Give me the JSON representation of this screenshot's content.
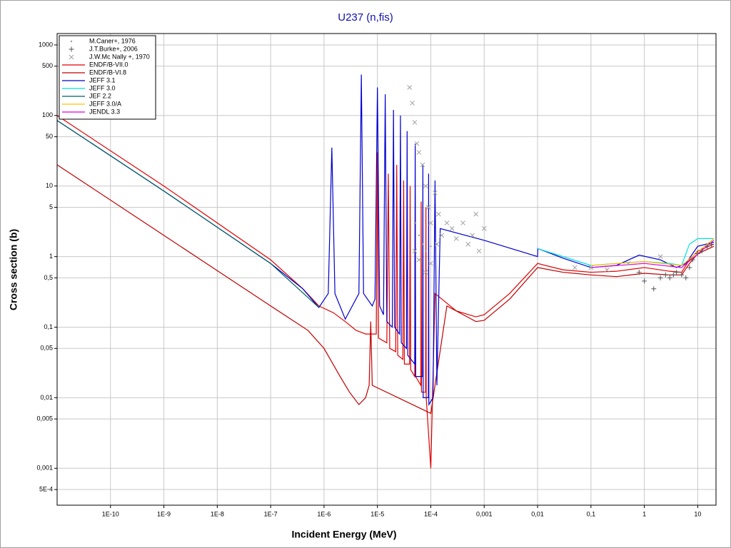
{
  "chart_data": {
    "type": "line",
    "title": "U237 (n,fis)",
    "xlabel": "Incident Energy (MeV)",
    "ylabel": "Cross section (b)",
    "xscale": "log",
    "yscale": "log",
    "grid": true,
    "legend": "upper left",
    "xlim": [
      1e-11,
      22
    ],
    "ylim": [
      0.0003,
      1450
    ],
    "xticks": [
      {
        "value": 1e-10,
        "label": "1E-10"
      },
      {
        "value": 1e-09,
        "label": "1E-9"
      },
      {
        "value": 1e-08,
        "label": "1E-8"
      },
      {
        "value": 1e-07,
        "label": "1E-7"
      },
      {
        "value": 1e-06,
        "label": "1E-6"
      },
      {
        "value": 1e-05,
        "label": "1E-5"
      },
      {
        "value": 0.0001,
        "label": "1E-4"
      },
      {
        "value": 0.001,
        "label": "0,001"
      },
      {
        "value": 0.01,
        "label": "0,01"
      },
      {
        "value": 0.1,
        "label": "0,1"
      },
      1,
      10
    ],
    "yticks": [
      1000,
      500,
      100,
      50,
      10,
      5,
      1,
      {
        "value": 0.5,
        "label": "0,5"
      },
      {
        "value": 0.1,
        "label": "0,1"
      },
      {
        "value": 0.05,
        "label": "0,05"
      },
      {
        "value": 0.01,
        "label": "0,01"
      },
      {
        "value": 0.005,
        "label": "0,005"
      },
      {
        "value": 0.001,
        "label": "0,001"
      },
      {
        "value": 0.0005,
        "label": "5E-4"
      }
    ],
    "series": [
      {
        "name": "M.Caner+, 1976",
        "color": "#999999",
        "mode": "markers",
        "marker": "dot",
        "x": [
          5e-05,
          6e-05,
          7e-05,
          8e-05,
          0.0001
        ],
        "values": [
          3,
          2,
          1.5,
          1.2,
          1.4
        ]
      },
      {
        "name": "J.T.Burke+, 2006",
        "color": "#555555",
        "mode": "markers",
        "marker": "plus",
        "x": [
          0.8,
          1,
          1.5,
          2,
          2.5,
          3,
          3.5,
          4,
          5,
          6,
          7,
          8,
          10,
          12,
          15,
          18
        ],
        "values": [
          0.6,
          0.45,
          0.35,
          0.5,
          0.55,
          0.5,
          0.55,
          0.6,
          0.55,
          0.5,
          0.7,
          0.9,
          1.1,
          1.2,
          1.4,
          1.5
        ]
      },
      {
        "name": "J.W.Mc Nally +, 1970",
        "color": "#a0a0a0",
        "mode": "markers",
        "marker": "cross",
        "x": [
          4e-05,
          4.5e-05,
          5e-05,
          5.5e-05,
          6e-05,
          7e-05,
          8e-05,
          9e-05,
          0.0001,
          0.00012,
          0.00014,
          0.00016,
          0.0002,
          0.00025,
          0.0003,
          0.0004,
          0.0005,
          0.0006,
          0.0007,
          0.0008,
          0.001,
          5e-05,
          6e-05,
          8e-05,
          0.0001,
          0.00013,
          0.05,
          0.1,
          0.2,
          0.5,
          2
        ],
        "values": [
          250,
          150,
          80,
          40,
          30,
          20,
          10,
          5,
          3,
          8,
          4,
          2,
          3,
          2.5,
          1.8,
          3,
          1.5,
          2,
          4,
          1.2,
          2.5,
          1.2,
          0.9,
          0.6,
          0.8,
          1.5,
          0.7,
          0.7,
          0.65,
          0.8,
          1.0
        ]
      },
      {
        "name": "ENDF/B-VII.0",
        "color": "#e00000",
        "mode": "lines",
        "x": [
          1e-11,
          1e-09,
          1e-07,
          4e-07,
          8e-07,
          1.5e-06,
          2.5e-06,
          4e-06,
          6e-06,
          8e-06,
          9.5e-06,
          1e-05,
          1.05e-05,
          1.5e-05,
          1.6e-05,
          1.7e-05,
          2.2e-05,
          2.3e-05,
          2.4e-05,
          3e-05,
          3.1e-05,
          3.2e-05,
          4e-05,
          4.1e-05,
          4.2e-05,
          5e-05,
          5.1e-05,
          5.2e-05,
          6.5e-05,
          6.6e-05,
          6.7e-05,
          8e-05,
          8.1e-05,
          8.2e-05,
          0.0001,
          0.00012,
          0.0003,
          0.0007,
          0.001,
          0.003,
          0.01,
          0.03,
          0.1,
          0.3,
          1,
          3,
          5,
          7,
          10,
          20
        ],
        "values": [
          100,
          10,
          0.9,
          0.35,
          0.2,
          0.16,
          0.12,
          0.09,
          0.08,
          0.08,
          0.08,
          30,
          0.07,
          0.06,
          15,
          0.05,
          0.045,
          20,
          0.04,
          0.035,
          12,
          0.03,
          0.03,
          10,
          0.025,
          0.02,
          8,
          0.02,
          0.015,
          6,
          0.012,
          0.012,
          5,
          0.01,
          0.001,
          0.3,
          0.17,
          0.14,
          0.15,
          0.3,
          0.8,
          0.65,
          0.6,
          0.62,
          0.7,
          0.62,
          0.6,
          0.9,
          1.2,
          1.5
        ]
      },
      {
        "name": "ENDF/B-VI.8",
        "color": "#c00000",
        "mode": "lines",
        "x": [
          1e-11,
          1e-09,
          1e-07,
          5e-07,
          1e-06,
          2e-06,
          3e-06,
          4.5e-06,
          6e-06,
          7e-06,
          7.5e-06,
          8e-06,
          0.0001,
          0.0002,
          0.0007,
          0.001,
          0.003,
          0.01,
          0.03,
          0.1,
          0.3,
          1,
          3,
          5,
          7,
          10,
          20
        ],
        "values": [
          20,
          2,
          0.2,
          0.09,
          0.05,
          0.02,
          0.012,
          0.008,
          0.01,
          0.015,
          0.12,
          0.015,
          0.006,
          0.2,
          0.12,
          0.125,
          0.25,
          0.7,
          0.6,
          0.55,
          0.52,
          0.58,
          0.55,
          0.55,
          0.8,
          1.1,
          1.4
        ]
      },
      {
        "name": "JEFF 3.1",
        "color": "#0000d0",
        "mode": "lines",
        "x": [
          1e-11,
          1e-09,
          1e-07,
          4e-07,
          8e-07,
          1.2e-06,
          1.4e-06,
          1.6e-06,
          2.5e-06,
          4.5e-06,
          5e-06,
          5.5e-06,
          8e-06,
          9e-06,
          1e-05,
          1.1e-05,
          1.3e-05,
          1.4e-05,
          1.5e-05,
          1.9e-05,
          2e-05,
          2.1e-05,
          2.6e-05,
          2.7e-05,
          2.8e-05,
          3.5e-05,
          3.6e-05,
          3.7e-05,
          5e-05,
          5.1e-05,
          5.2e-05,
          7e-05,
          7.1e-05,
          7.2e-05,
          9e-05,
          9.1e-05,
          9.2e-05,
          0.00011,
          0.00012,
          0.00013,
          0.00015,
          0.001,
          0.01,
          0.0101,
          0.03,
          0.1,
          0.3,
          0.8,
          2,
          4,
          6,
          10,
          20
        ],
        "values": [
          85,
          8.5,
          0.8,
          0.35,
          0.19,
          0.3,
          35,
          0.3,
          0.13,
          0.3,
          380,
          0.3,
          0.2,
          0.25,
          250,
          0.2,
          0.15,
          200,
          0.12,
          0.1,
          120,
          0.1,
          0.08,
          100,
          0.06,
          0.05,
          60,
          0.04,
          0.03,
          40,
          0.02,
          0.02,
          20,
          0.01,
          0.01,
          15,
          0.008,
          0.01,
          12,
          0.015,
          2.5,
          1.7,
          1.0,
          1.3,
          0.95,
          0.7,
          0.75,
          1.05,
          0.9,
          0.7,
          0.8,
          1.4,
          1.6
        ]
      },
      {
        "name": "JEFF 3.0",
        "color": "#00e0e0",
        "mode": "lines",
        "x": [
          0.01,
          0.1,
          0.3,
          1,
          3,
          5,
          7,
          10,
          20
        ],
        "values": [
          1.3,
          0.75,
          0.8,
          0.85,
          0.8,
          0.75,
          1.5,
          1.8,
          1.8
        ]
      },
      {
        "name": "JEF 2.2",
        "color": "#006060",
        "mode": "lines",
        "x": [
          1e-11,
          1e-09,
          1e-07,
          8e-07
        ],
        "values": [
          85,
          8.5,
          0.8,
          0.19
        ]
      },
      {
        "name": "JEFF 3.0/A",
        "color": "#ffc000",
        "mode": "lines",
        "x": [
          0.1,
          1,
          5,
          20
        ],
        "values": [
          0.75,
          0.85,
          0.75,
          1.8
        ]
      },
      {
        "name": "JENDL 3.3",
        "color": "#e000e0",
        "mode": "lines",
        "x": [
          0.1,
          1,
          5,
          20
        ],
        "values": [
          0.7,
          0.8,
          0.7,
          1.7
        ]
      }
    ]
  }
}
